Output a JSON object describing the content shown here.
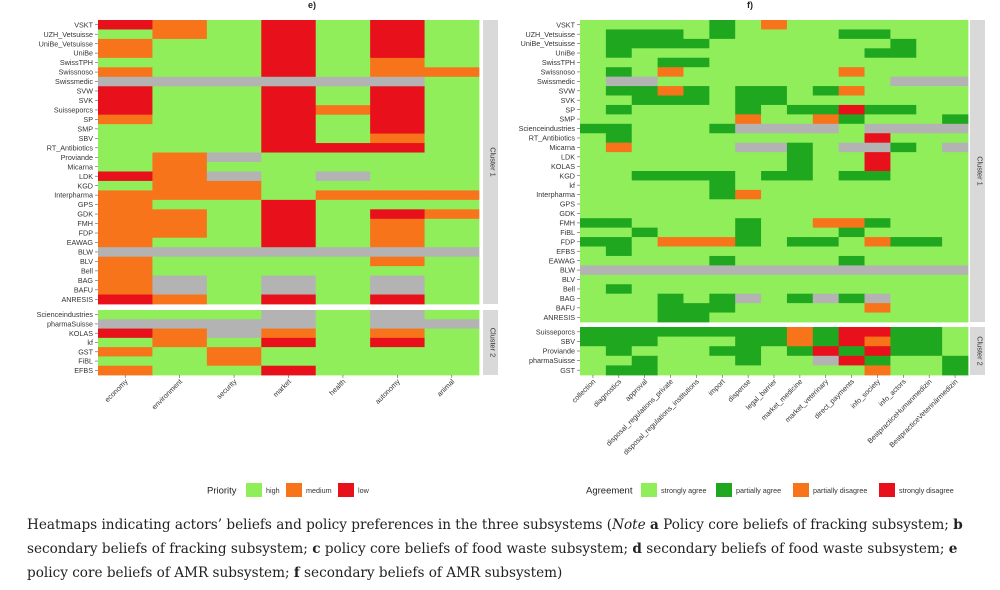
{
  "colors": {
    "0": "#90EE5A",
    "1": "#1FA81F",
    "2": "#F7741B",
    "3": "#E8101A",
    "g": "#B3B3B3",
    "panel_bg": "#EBEBEB",
    "strip": "#D9D9D9"
  },
  "chart_data": [
    {
      "type": "heatmap",
      "title": "e)",
      "xlabel": "",
      "ylabel": "",
      "columns": [
        "economy",
        "environment",
        "security",
        "market",
        "health",
        "autonomy",
        "animal"
      ],
      "legend": {
        "title": "Priority",
        "entries": [
          {
            "label": "high",
            "code": "0"
          },
          {
            "label": "medium",
            "code": "2"
          },
          {
            "label": "low",
            "code": "3"
          }
        ],
        "value_codes": {
          "0": "high",
          "2": "medium",
          "3": "low",
          "g": "missing"
        }
      },
      "groups": [
        {
          "name": "Cluster 1",
          "rows": [
            "VSKT",
            "UZH_Vetsuisse",
            "UniBe_Vetsuisse",
            "UniBe",
            "SwissTPH",
            "Swissnoso",
            "Swissmedic",
            "SVW",
            "SVK",
            "Suisseporcs",
            "SP",
            "SMP",
            "SBV",
            "RT_Antibiotics",
            "Proviande",
            "Micarna",
            "LDK",
            "KGD",
            "Interpharma",
            "GPS",
            "GDK",
            "FMH",
            "FDP",
            "EAWAG",
            "BLW",
            "BLV",
            "Bell",
            "BAG",
            "BAFU",
            "ANRESIS"
          ],
          "values": [
            "3203030",
            "0203030",
            "2003030",
            "2003030",
            "0003020",
            "2003022",
            "gggggg0",
            "3003030",
            "3003030",
            "3003230",
            "2003030",
            "0003030",
            "0003020",
            "0003330",
            "02g0000",
            "0200000",
            "32g0g00",
            "0220000",
            "2220222",
            "2003000",
            "2203032",
            "2203020",
            "2203020",
            "2003020",
            "ggggggg",
            "2000020",
            "2000000",
            "2g0g0g0",
            "2g0g0g0",
            "3203030"
          ]
        },
        {
          "name": "Cluster 2",
          "rows": [
            "Scienceindustries",
            "pharmaSuisse",
            "KOLAS",
            "kf",
            "GST",
            "FiBL",
            "EFBS"
          ],
          "values": [
            "000g0g0",
            "gggg0gg",
            "32g2020",
            "0203030",
            "2020000",
            "0020000",
            "2003000"
          ]
        }
      ]
    },
    {
      "type": "heatmap",
      "title": "f)",
      "xlabel": "",
      "ylabel": "",
      "columns": [
        "collection",
        "diagnostics",
        "approval",
        "disposal_regulations_private",
        "disposal_regulations_institutions",
        "import",
        "dispense",
        "legal_barrier",
        "market_medicine",
        "market_veterinary",
        "direct_payments",
        "info_society",
        "info_actors",
        "BestpracticeHumanmedizin",
        "BestpracticeVeterinärmedizin"
      ],
      "legend": {
        "title": "Agreement",
        "entries": [
          {
            "label": "strongly agree",
            "code": "0"
          },
          {
            "label": "partially agree",
            "code": "1"
          },
          {
            "label": "partially disagree",
            "code": "2"
          },
          {
            "label": "strongly disagree",
            "code": "3"
          }
        ],
        "value_codes": {
          "0": "strongly agree",
          "1": "partially agree",
          "2": "partially disagree",
          "3": "strongly disagree",
          "g": "missing"
        }
      },
      "groups": [
        {
          "name": "Cluster 1",
          "rows": [
            "VSKT",
            "UZH_Vetsuisse",
            "UniBe_Vetsuisse",
            "UniBe",
            "SwissTPH",
            "Swissnoso",
            "Swissmedic",
            "SVW",
            "SVK",
            "SP",
            "SMP",
            "Scienceindustries",
            "RT_Antibiotics",
            "Micarna",
            "LDK",
            "KOLAS",
            "KGD",
            "kf",
            "Interpharma",
            "GPS",
            "GDK",
            "FMH",
            "FiBL",
            "FDP",
            "EFBS",
            "EAWAG",
            "BLW",
            "BLV",
            "Bell",
            "BAG",
            "BAFU",
            "ANRESIS"
          ],
          "values": [
            "000001020000000",
            "011101000011000",
            "011110000000100",
            "010000000001100",
            "000110000000000",
            "010200000020000",
            "0gg000000000ggg",
            "011210110120000",
            "001110110000000",
            "010000101131100",
            "000000200210001",
            "110001gggg0gggg",
            "010000000003000",
            "020000gg10gg10g",
            "000000001003000",
            "000000001003000",
            "001111011011000",
            "000001000000000",
            "000001200000000",
            "000000000000000",
            "000000000000000",
            "110000100221000",
            "001000100010000",
            "110222101102110",
            "010000000000000",
            "000001000010000",
            "ggggggggggggggg",
            "000000000000000",
            "010000000000000",
            "000101g01g1g000",
            "000111000002000",
            "000110000000000"
          ]
        },
        {
          "name": "Cluster 2",
          "rows": [
            "Suisseporcs",
            "SBV",
            "Proviande",
            "pharmaSuisse",
            "GST"
          ],
          "values": [
            "111111112133110",
            "111000112132110",
            "010001101313110",
            "001000100g31001",
            "011000000002001"
          ]
        }
      ]
    }
  ],
  "strip_label": "Cluster 1",
  "strip_label_2": "Cluster 2",
  "caption": {
    "p1": "Heatmaps indicating actors’ beliefs and policy preferences in the three subsystems (",
    "note": "Note",
    "a": "a",
    "p2": " Policy core beliefs of fracking subsystem; ",
    "b": "b",
    "p3": " secondary beliefs of fracking subsystem; ",
    "c": "c",
    "p4": " policy core beliefs of food waste subsystem; ",
    "d": "d",
    "p5": " secondary beliefs of food waste subsystem; ",
    "e": "e",
    "p6": " policy core beliefs of AMR subsystem; ",
    "f": "f",
    "p7": " secondary beliefs of AMR subsystem)"
  }
}
